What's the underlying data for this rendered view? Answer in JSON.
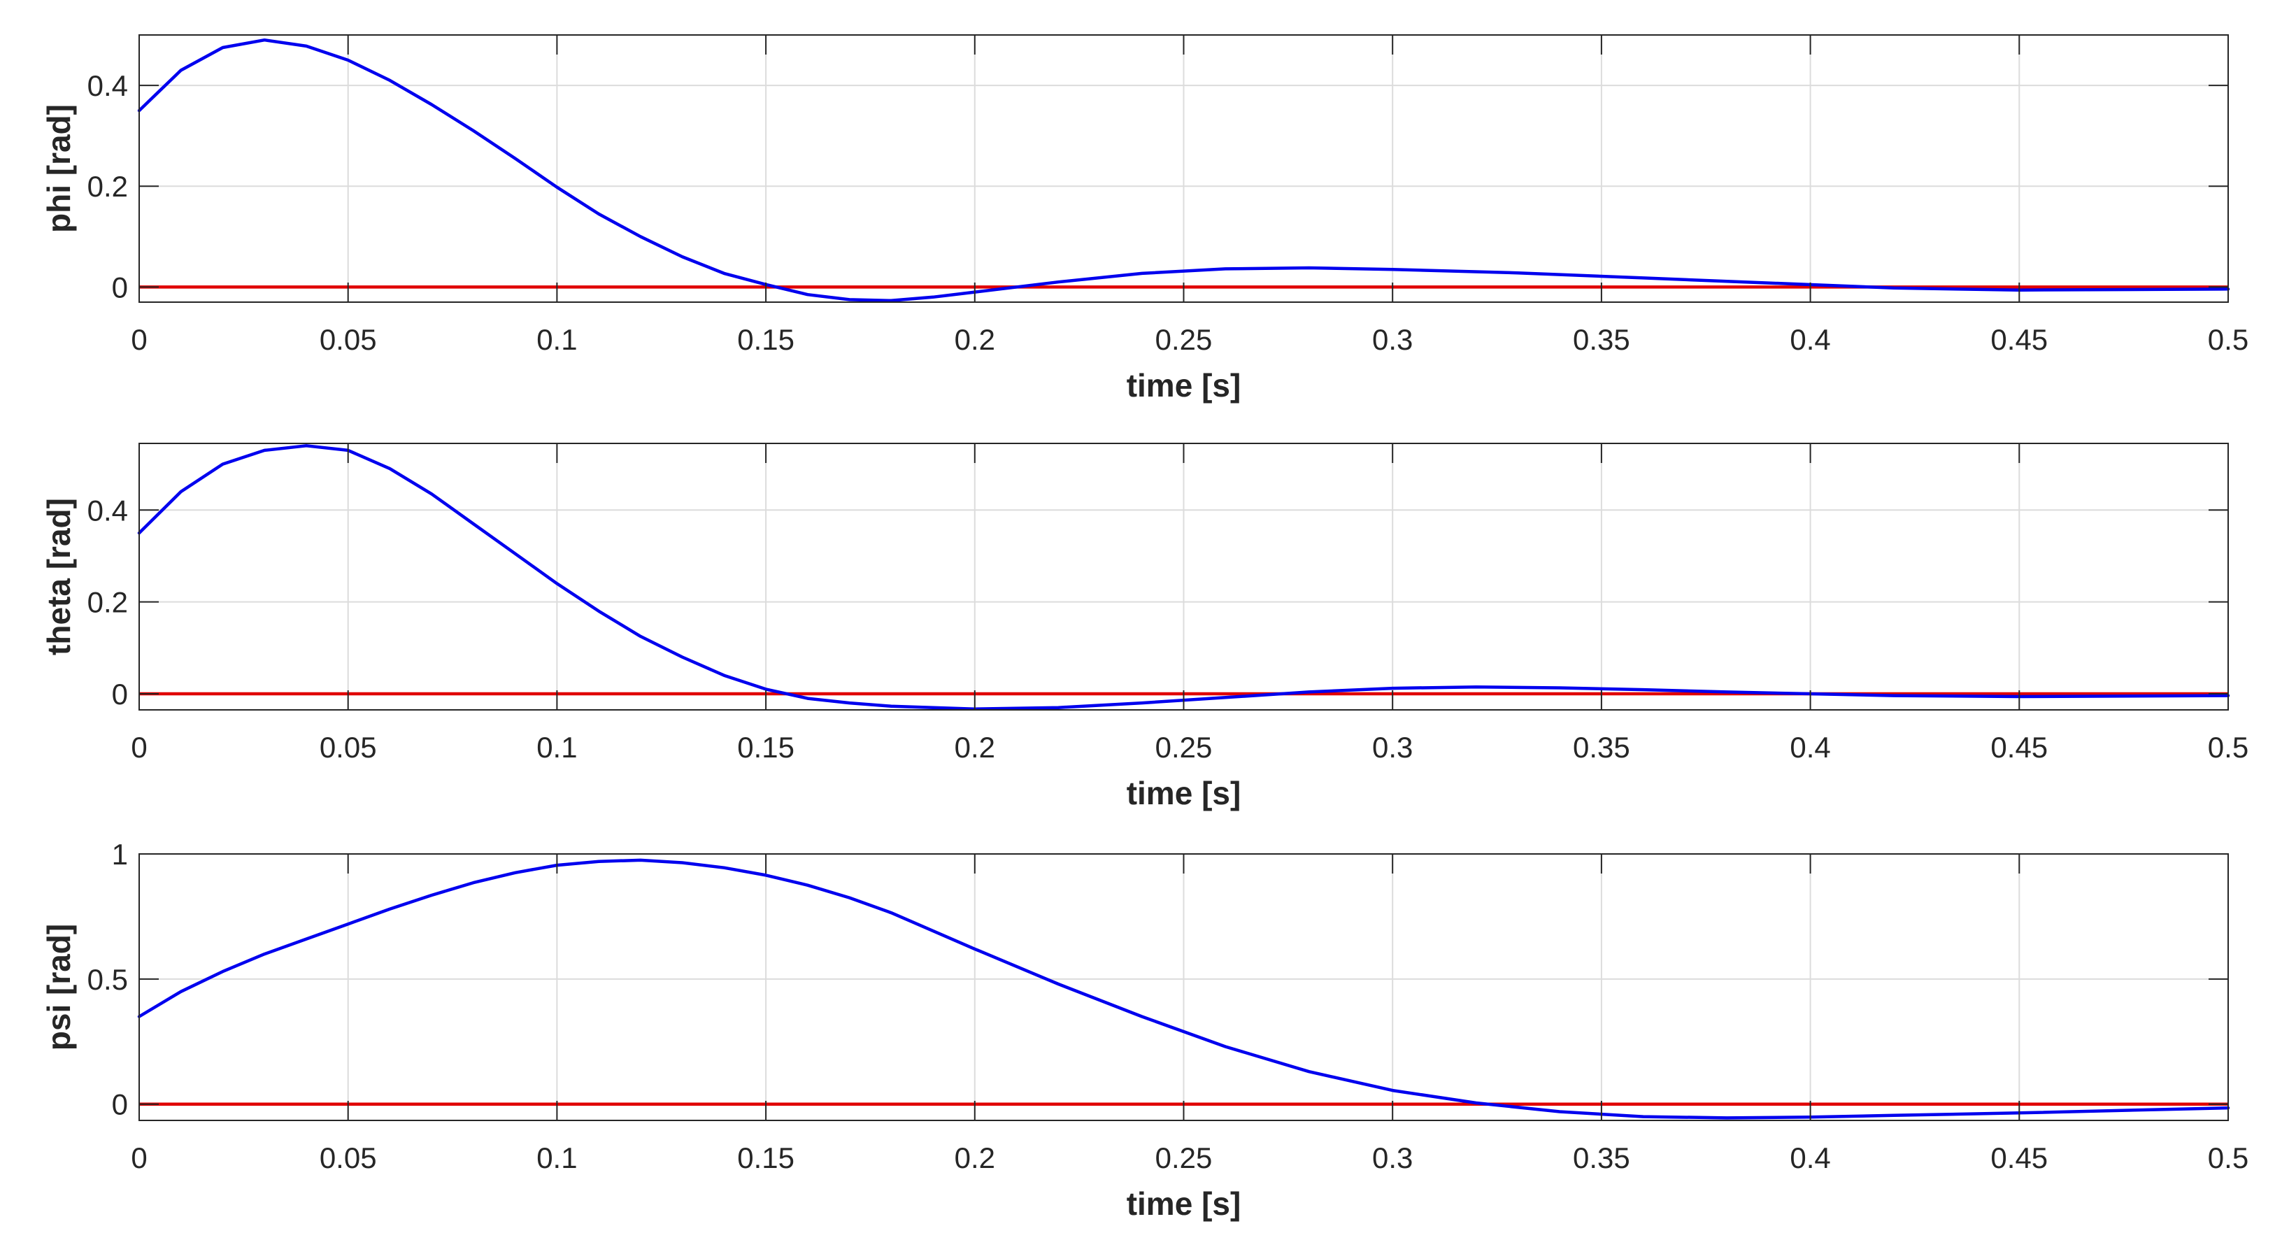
{
  "colors": {
    "response": "#0000ee",
    "reference": "#e00000"
  },
  "chart_data": [
    {
      "type": "line",
      "title": "",
      "xlabel": "time [s]",
      "ylabel": "phi [rad]",
      "xlim": [
        0,
        0.5
      ],
      "ylim": [
        -0.03,
        0.5
      ],
      "xticks": [
        0,
        0.05,
        0.1,
        0.15,
        0.2,
        0.25,
        0.3,
        0.35,
        0.4,
        0.45,
        0.5
      ],
      "xtick_labels": [
        "0",
        "0.05",
        "0.1",
        "0.15",
        "0.2",
        "0.25",
        "0.3",
        "0.35",
        "0.4",
        "0.45",
        "0.5"
      ],
      "yticks": [
        0,
        0.2,
        0.4
      ],
      "ytick_labels": [
        "0",
        "0.2",
        "0.4"
      ],
      "grid": true,
      "series": [
        {
          "name": "phi",
          "color": "#0000ee",
          "x": [
            0,
            0.01,
            0.02,
            0.03,
            0.04,
            0.05,
            0.06,
            0.07,
            0.08,
            0.09,
            0.1,
            0.11,
            0.12,
            0.13,
            0.14,
            0.15,
            0.16,
            0.17,
            0.18,
            0.19,
            0.2,
            0.22,
            0.24,
            0.26,
            0.28,
            0.3,
            0.33,
            0.36,
            0.39,
            0.42,
            0.45,
            0.5
          ],
          "y": [
            0.35,
            0.43,
            0.475,
            0.49,
            0.478,
            0.45,
            0.41,
            0.362,
            0.31,
            0.255,
            0.198,
            0.145,
            0.1,
            0.06,
            0.027,
            0.005,
            -0.015,
            -0.025,
            -0.027,
            -0.02,
            -0.01,
            0.01,
            0.027,
            0.036,
            0.038,
            0.035,
            0.028,
            0.018,
            0.008,
            -0.002,
            -0.006,
            -0.004
          ]
        },
        {
          "name": "phi reference",
          "color": "#e00000",
          "x": [
            0,
            0.5
          ],
          "y": [
            0,
            0
          ]
        }
      ]
    },
    {
      "type": "line",
      "title": "",
      "xlabel": "time [s]",
      "ylabel": "theta [rad]",
      "xlim": [
        0,
        0.5
      ],
      "ylim": [
        -0.035,
        0.545
      ],
      "xticks": [
        0,
        0.05,
        0.1,
        0.15,
        0.2,
        0.25,
        0.3,
        0.35,
        0.4,
        0.45,
        0.5
      ],
      "xtick_labels": [
        "0",
        "0.05",
        "0.1",
        "0.15",
        "0.2",
        "0.25",
        "0.3",
        "0.35",
        "0.4",
        "0.45",
        "0.5"
      ],
      "yticks": [
        0,
        0.2,
        0.4
      ],
      "ytick_labels": [
        "0",
        "0.2",
        "0.4"
      ],
      "grid": true,
      "series": [
        {
          "name": "theta",
          "color": "#0000ee",
          "x": [
            0,
            0.01,
            0.02,
            0.03,
            0.04,
            0.05,
            0.06,
            0.07,
            0.08,
            0.09,
            0.1,
            0.11,
            0.12,
            0.13,
            0.14,
            0.15,
            0.16,
            0.17,
            0.18,
            0.2,
            0.22,
            0.24,
            0.26,
            0.28,
            0.3,
            0.32,
            0.34,
            0.36,
            0.38,
            0.4,
            0.42,
            0.45,
            0.5
          ],
          "y": [
            0.35,
            0.44,
            0.5,
            0.53,
            0.54,
            0.53,
            0.49,
            0.435,
            0.37,
            0.305,
            0.24,
            0.18,
            0.125,
            0.08,
            0.04,
            0.01,
            -0.01,
            -0.02,
            -0.027,
            -0.033,
            -0.03,
            -0.02,
            -0.008,
            0.004,
            0.012,
            0.015,
            0.013,
            0.009,
            0.004,
            0.0,
            -0.004,
            -0.006,
            -0.004
          ]
        },
        {
          "name": "theta reference",
          "color": "#e00000",
          "x": [
            0,
            0.5
          ],
          "y": [
            0,
            0
          ]
        }
      ]
    },
    {
      "type": "line",
      "title": "",
      "xlabel": "time [s]",
      "ylabel": "psi [rad]",
      "xlim": [
        0,
        0.5
      ],
      "ylim": [
        -0.065,
        1.0
      ],
      "xticks": [
        0,
        0.05,
        0.1,
        0.15,
        0.2,
        0.25,
        0.3,
        0.35,
        0.4,
        0.45,
        0.5
      ],
      "xtick_labels": [
        "0",
        "0.05",
        "0.1",
        "0.15",
        "0.2",
        "0.25",
        "0.3",
        "0.35",
        "0.4",
        "0.45",
        "0.5"
      ],
      "yticks": [
        0,
        0.5,
        1
      ],
      "ytick_labels": [
        "0",
        "0.5",
        "1"
      ],
      "grid": true,
      "series": [
        {
          "name": "psi",
          "color": "#0000ee",
          "x": [
            0,
            0.01,
            0.02,
            0.03,
            0.04,
            0.05,
            0.06,
            0.07,
            0.08,
            0.09,
            0.1,
            0.11,
            0.12,
            0.13,
            0.14,
            0.15,
            0.16,
            0.17,
            0.18,
            0.2,
            0.22,
            0.24,
            0.26,
            0.28,
            0.3,
            0.32,
            0.34,
            0.36,
            0.38,
            0.4,
            0.42,
            0.45,
            0.5
          ],
          "y": [
            0.35,
            0.45,
            0.53,
            0.6,
            0.66,
            0.72,
            0.78,
            0.835,
            0.885,
            0.925,
            0.955,
            0.97,
            0.975,
            0.965,
            0.945,
            0.915,
            0.875,
            0.825,
            0.765,
            0.62,
            0.48,
            0.35,
            0.23,
            0.13,
            0.055,
            0.005,
            -0.03,
            -0.05,
            -0.055,
            -0.052,
            -0.045,
            -0.035,
            -0.015
          ]
        },
        {
          "name": "psi reference",
          "color": "#e00000",
          "x": [
            0,
            0.5
          ],
          "y": [
            0,
            0
          ]
        }
      ]
    }
  ]
}
